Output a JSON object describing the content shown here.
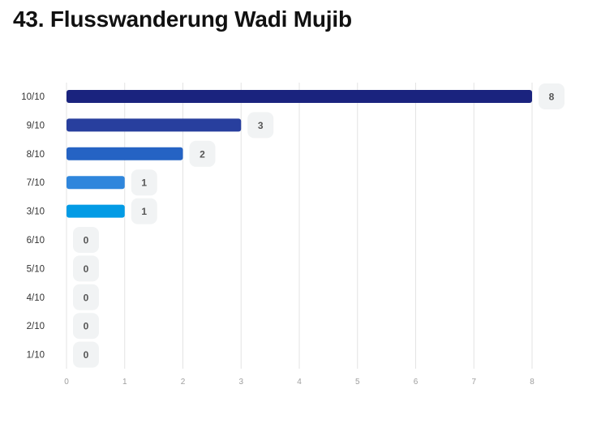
{
  "header": {
    "title": "43. Flusswanderung Wadi Mujib"
  },
  "chart_data": {
    "type": "bar",
    "orientation": "horizontal",
    "title": "43. Flusswanderung Wadi Mujib",
    "xlabel": "",
    "ylabel": "",
    "categories": [
      "10/10",
      "9/10",
      "8/10",
      "7/10",
      "3/10",
      "6/10",
      "5/10",
      "4/10",
      "2/10",
      "1/10"
    ],
    "values": [
      8,
      3,
      2,
      1,
      1,
      0,
      0,
      0,
      0,
      0
    ],
    "bar_colors": [
      "#1a237e",
      "#283f9e",
      "#2563c4",
      "#2f86dc",
      "#039be5",
      "#039be5",
      "#039be5",
      "#039be5",
      "#039be5",
      "#039be5"
    ],
    "xlim": [
      0,
      8
    ],
    "xticks": [
      "0",
      "1",
      "2",
      "3",
      "4",
      "5",
      "6",
      "7",
      "8"
    ],
    "grid": true,
    "legend": "none",
    "value_label_bg": "#f1f3f4"
  }
}
